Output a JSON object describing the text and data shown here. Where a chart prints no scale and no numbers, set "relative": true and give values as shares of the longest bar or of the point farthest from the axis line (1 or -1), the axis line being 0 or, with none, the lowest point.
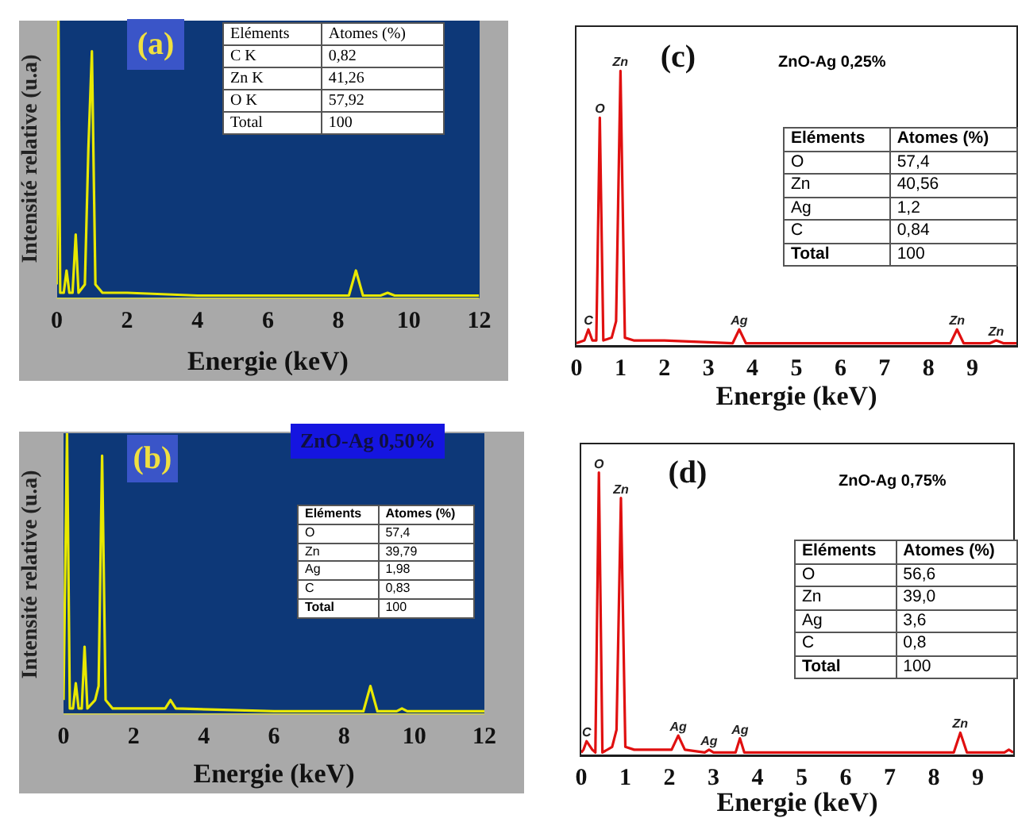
{
  "chart_data": [
    {
      "type": "line",
      "title": "(a)",
      "xlabel": "Energie (keV)",
      "ylabel": "Intensité relative (u.a)",
      "relative": true,
      "color": "#e8e800",
      "xlim": [
        0,
        12
      ],
      "xticks": [
        0,
        2,
        4,
        6,
        8,
        10,
        12
      ],
      "x": [
        0,
        0.05,
        0.1,
        0.2,
        0.28,
        0.36,
        0.45,
        0.54,
        0.62,
        0.8,
        0.9,
        1.0,
        1.1,
        1.3,
        2,
        4,
        6,
        8.3,
        8.5,
        8.7,
        9.2,
        9.4,
        9.6,
        12
      ],
      "values": [
        0.05,
        1,
        0.02,
        0.02,
        0.1,
        0.02,
        0.02,
        0.23,
        0.02,
        0.05,
        0.54,
        0.89,
        0.05,
        0.02,
        0.02,
        0.01,
        0.01,
        0.01,
        0.1,
        0.01,
        0.01,
        0.02,
        0.01,
        0.01
      ],
      "annotations": [
        "Eléments",
        "Atomes (%)",
        "C K",
        "0,82",
        "Zn K",
        "41,26",
        "O K",
        "57,92",
        "Total",
        "100"
      ]
    },
    {
      "type": "line",
      "title": "(c)",
      "subtitle": "ZnO-Ag 0,25%",
      "xlabel": "Energie (keV)",
      "relative": true,
      "color": "#e01010",
      "xlim": [
        0,
        10
      ],
      "xticks": [
        0,
        1,
        2,
        3,
        4,
        5,
        6,
        7,
        8,
        9
      ],
      "x": [
        0,
        0.18,
        0.27,
        0.36,
        0.45,
        0.53,
        0.61,
        0.8,
        0.9,
        1.0,
        1.1,
        1.3,
        2,
        3.55,
        3.7,
        3.85,
        6,
        8.5,
        8.65,
        8.8,
        9.4,
        9.54,
        9.7,
        10
      ],
      "values": [
        0.01,
        0.02,
        0.06,
        0.02,
        0.02,
        0.83,
        0.02,
        0.03,
        0.09,
        1,
        0.03,
        0.02,
        0.02,
        0.01,
        0.06,
        0.01,
        0.01,
        0.01,
        0.06,
        0.01,
        0.01,
        0.02,
        0.01,
        0.01
      ],
      "annotations": [
        "Eléments",
        "Atomes (%)",
        "O",
        "57,4",
        "Zn",
        "40,56",
        "Ag",
        "1,2",
        "C",
        "0,84",
        "Total",
        "100",
        {
          "text": "C",
          "x": 0.27,
          "y": 0.06
        },
        {
          "text": "O",
          "x": 0.53,
          "y": 0.83
        },
        {
          "text": "Zn",
          "x": 1.0,
          "y": 1
        },
        {
          "text": "Ag",
          "x": 3.7,
          "y": 0.06
        },
        {
          "text": "Zn",
          "x": 8.65,
          "y": 0.06
        },
        {
          "text": "Zn",
          "x": 9.54,
          "y": 0.02
        }
      ]
    },
    {
      "type": "line",
      "title": "(b)",
      "subtitle": "ZnO-Ag 0,50%",
      "xlabel": "Energie (keV)",
      "ylabel": "Intensité relative (u.a)",
      "relative": true,
      "color": "#e8e800",
      "xlim": [
        0,
        12
      ],
      "xticks": [
        0,
        2,
        4,
        6,
        8,
        10,
        12
      ],
      "x": [
        0,
        0.1,
        0.18,
        0.27,
        0.35,
        0.43,
        0.52,
        0.6,
        0.68,
        0.9,
        1.0,
        1.1,
        1.2,
        1.4,
        2,
        2.9,
        3.05,
        3.2,
        6,
        8.55,
        8.75,
        8.95,
        9.5,
        9.65,
        9.8,
        12
      ],
      "values": [
        0.05,
        1,
        0.02,
        0.02,
        0.11,
        0.02,
        0.02,
        0.24,
        0.02,
        0.05,
        0.1,
        0.92,
        0.05,
        0.02,
        0.02,
        0.02,
        0.05,
        0.02,
        0.01,
        0.01,
        0.1,
        0.01,
        0.01,
        0.02,
        0.01,
        0.01
      ],
      "annotations": [
        "Eléments",
        "Atomes (%)",
        "O",
        "57,4",
        "Zn",
        "39,79",
        "Ag",
        "1,98",
        "C",
        "0,83",
        "Total",
        "100"
      ]
    },
    {
      "type": "line",
      "title": "(d)",
      "subtitle": "ZnO-Ag 0,75%",
      "xlabel": "Energie (keV)",
      "relative": true,
      "color": "#e01010",
      "xlim": [
        0,
        9.8
      ],
      "xticks": [
        0,
        1,
        2,
        3,
        4,
        5,
        6,
        7,
        8,
        9
      ],
      "x": [
        0,
        0.05,
        0.12,
        0.25,
        0.32,
        0.4,
        0.48,
        0.7,
        0.8,
        0.9,
        1.0,
        1.2,
        2.05,
        2.2,
        2.35,
        2.8,
        2.9,
        3.0,
        3.5,
        3.6,
        3.7,
        4,
        8.45,
        8.6,
        8.75,
        9.6,
        9.7,
        9.8
      ],
      "values": [
        0.01,
        0.02,
        0.05,
        0.02,
        0.01,
        1,
        0.01,
        0.03,
        0.09,
        0.91,
        0.03,
        0.02,
        0.02,
        0.07,
        0.02,
        0.01,
        0.02,
        0.01,
        0.01,
        0.06,
        0.01,
        0.01,
        0.01,
        0.08,
        0.01,
        0.01,
        0.02,
        0.01
      ],
      "annotations": [
        "Eléments",
        "Atomes (%)",
        "O",
        "56,6",
        "Zn",
        "39,0",
        "Ag",
        "3,6",
        "C",
        "0,8",
        "Total",
        "100",
        {
          "text": "C",
          "x": 0.12,
          "y": 0.05
        },
        {
          "text": "O",
          "x": 0.4,
          "y": 1
        },
        {
          "text": "Zn",
          "x": 0.9,
          "y": 0.91
        },
        {
          "text": "Ag",
          "x": 2.2,
          "y": 0.07
        },
        {
          "text": "Ag",
          "x": 2.9,
          "y": 0.02
        },
        {
          "text": "Ag",
          "x": 3.6,
          "y": 0.06
        },
        {
          "text": "Zn",
          "x": 8.6,
          "y": 0.08
        }
      ]
    }
  ]
}
